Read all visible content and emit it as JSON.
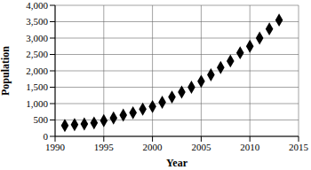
{
  "chart_data": {
    "type": "scatter",
    "x_label": "Year",
    "y_label": "Population",
    "x": [
      1991,
      1992,
      1993,
      1994,
      1995,
      1996,
      1997,
      1998,
      1999,
      2000,
      2001,
      2002,
      2003,
      2004,
      2005,
      2006,
      2007,
      2008,
      2009,
      2010,
      2011,
      2012,
      2013
    ],
    "values": [
      330,
      360,
      380,
      410,
      480,
      560,
      650,
      720,
      830,
      910,
      1040,
      1200,
      1350,
      1500,
      1680,
      1880,
      2100,
      2300,
      2550,
      2750,
      3000,
      3280,
      3550
    ],
    "color": "#000000",
    "marker": "diamond",
    "xlim": [
      1990,
      2015
    ],
    "xticks": [
      1990,
      1995,
      2000,
      2005,
      2010,
      2015
    ],
    "ylim": [
      0,
      4000
    ],
    "yticks": [
      0,
      500,
      {
        "value": 1000,
        "label": "1,000"
      },
      {
        "value": 1500,
        "label": "1,500"
      },
      {
        "value": 2000,
        "label": "2,000"
      },
      {
        "value": 2500,
        "label": "2,500"
      },
      {
        "value": 3000,
        "label": "3,000"
      },
      {
        "value": 3500,
        "label": "3,500"
      },
      {
        "value": 4000,
        "label": "4,000"
      }
    ],
    "grid": true
  }
}
